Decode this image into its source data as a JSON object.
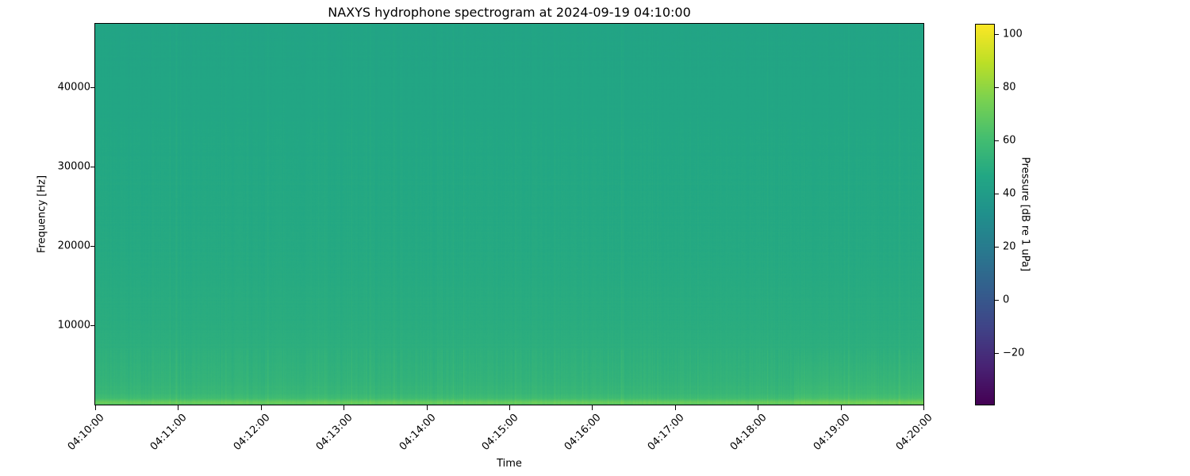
{
  "chart_data": {
    "type": "heatmap",
    "title": "NAXYS hydrophone spectrogram at 2024-09-19 04:10:00",
    "xlabel": "Time",
    "ylabel": "Frequency [Hz]",
    "x_tick_labels": [
      "04:10:00",
      "04:11:00",
      "04:12:00",
      "04:13:00",
      "04:14:00",
      "04:15:00",
      "04:16:00",
      "04:17:00",
      "04:18:00",
      "04:19:00",
      "04:20:00"
    ],
    "xlim": [
      "04:10:00",
      "04:20:00"
    ],
    "y_ticks": [
      10000,
      20000,
      30000,
      40000
    ],
    "y_tick_labels": [
      "10000",
      "20000",
      "30000",
      "40000"
    ],
    "ylim": [
      0,
      48000
    ],
    "colormap": "viridis",
    "colorbar": {
      "label": "Pressure [dB re 1 uPa]",
      "ticks": [
        -20,
        0,
        20,
        40,
        60,
        80,
        100
      ],
      "tick_labels": [
        "−20",
        "0",
        "20",
        "40",
        "60",
        "80",
        "100"
      ],
      "range": [
        -39.5,
        104
      ]
    },
    "mean_level_profile": {
      "frequency_hz": [
        0,
        300,
        800,
        1500,
        3000,
        6000,
        10000,
        15000,
        20000,
        30000,
        48000
      ],
      "level_db": [
        62,
        72,
        60,
        56,
        54,
        52,
        50,
        49,
        48,
        47,
        45
      ]
    },
    "grid": false
  }
}
